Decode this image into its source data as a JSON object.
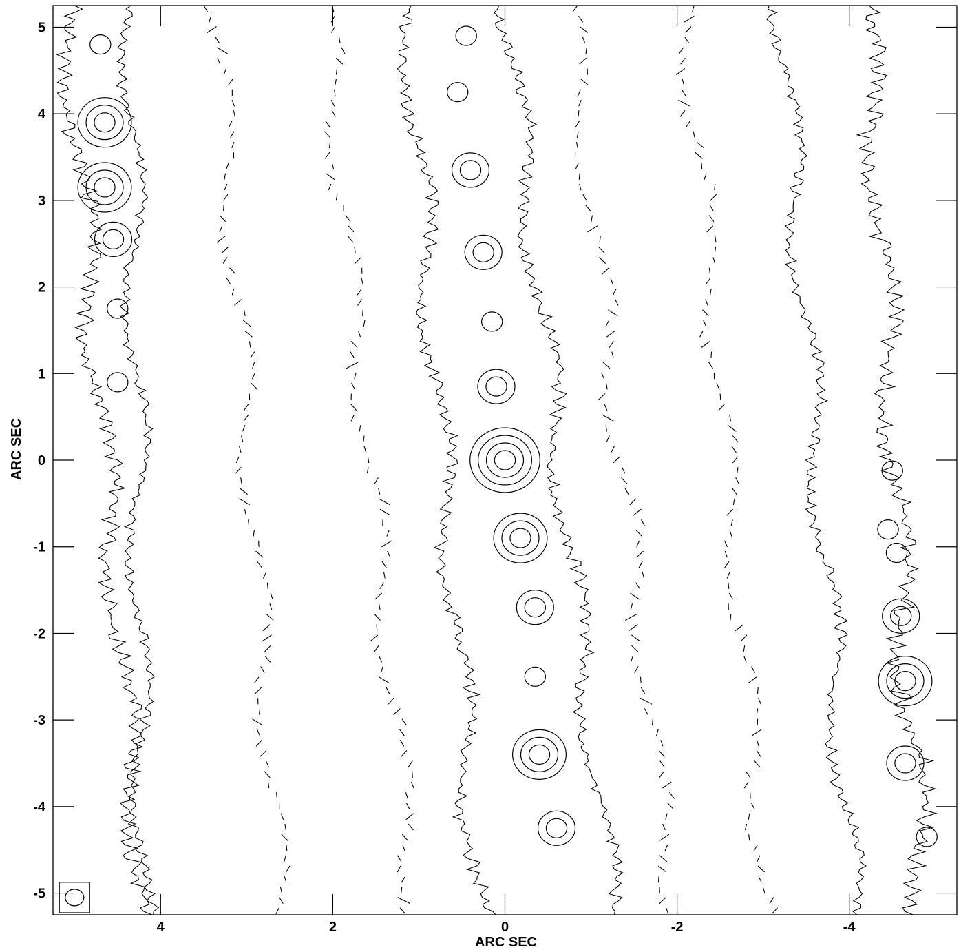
{
  "chart_data": {
    "type": "contour",
    "xlabel": "ARC SEC",
    "ylabel": "ARC SEC",
    "xlim": [
      5.25,
      -5.25
    ],
    "ylim": [
      -5.25,
      5.25
    ],
    "x_ticks": [
      4,
      2,
      0,
      -2,
      -4
    ],
    "x_tick_labels": [
      "4",
      "2",
      "0",
      "-2",
      "-4"
    ],
    "y_ticks": [
      5,
      4,
      3,
      2,
      1,
      0,
      -1,
      -2,
      -3,
      -4,
      -5
    ],
    "y_tick_labels": [
      "5",
      "4",
      "3",
      "2",
      "1",
      "0",
      "-1",
      "-2",
      "-3",
      "-4",
      "-5"
    ],
    "beam": {
      "x": 5.0,
      "y": -5.05,
      "major": 0.18,
      "minor": 0.16
    },
    "components": [
      {
        "x": 4.7,
        "y": 4.8,
        "levels": 1
      },
      {
        "x": 4.65,
        "y": 3.9,
        "levels": 3
      },
      {
        "x": 4.65,
        "y": 3.15,
        "levels": 3
      },
      {
        "x": 4.55,
        "y": 2.55,
        "levels": 2
      },
      {
        "x": 4.5,
        "y": 1.75,
        "levels": 1
      },
      {
        "x": 4.5,
        "y": 0.9,
        "levels": 1
      },
      {
        "x": 0.45,
        "y": 4.9,
        "levels": 1
      },
      {
        "x": 0.55,
        "y": 4.25,
        "levels": 1
      },
      {
        "x": 0.4,
        "y": 3.35,
        "levels": 2
      },
      {
        "x": 0.25,
        "y": 2.4,
        "levels": 2
      },
      {
        "x": 0.15,
        "y": 1.6,
        "levels": 1
      },
      {
        "x": 0.1,
        "y": 0.85,
        "levels": 2
      },
      {
        "x": 0.0,
        "y": 0.0,
        "levels": 4
      },
      {
        "x": -0.18,
        "y": -0.9,
        "levels": 3
      },
      {
        "x": -0.35,
        "y": -1.7,
        "levels": 2
      },
      {
        "x": -0.35,
        "y": -2.5,
        "levels": 1
      },
      {
        "x": -0.4,
        "y": -3.4,
        "levels": 3
      },
      {
        "x": -0.6,
        "y": -4.25,
        "levels": 2
      },
      {
        "x": -4.5,
        "y": -0.12,
        "levels": 1
      },
      {
        "x": -4.45,
        "y": -0.8,
        "levels": 1
      },
      {
        "x": -4.55,
        "y": -1.07,
        "levels": 1
      },
      {
        "x": -4.6,
        "y": -1.8,
        "levels": 2
      },
      {
        "x": -4.65,
        "y": -2.55,
        "levels": 3
      },
      {
        "x": -4.65,
        "y": -3.5,
        "levels": 2
      },
      {
        "x": -4.9,
        "y": -4.35,
        "levels": 1
      }
    ],
    "traces": [
      {
        "style": "solid",
        "top": 4.35,
        "bottom": 4.2,
        "amp": 0.06
      },
      {
        "style": "dashed",
        "top": 3.35,
        "bottom": 2.6,
        "amp": 0.05
      },
      {
        "style": "dashed",
        "top": 2.1,
        "bottom": 1.05,
        "amp": 0.06
      },
      {
        "style": "solid",
        "top": 1.15,
        "bottom": 0.3,
        "amp": 0.08
      },
      {
        "style": "solid",
        "top": 0.0,
        "bottom": -1.25,
        "amp": 0.08
      },
      {
        "style": "dashed",
        "top": -0.75,
        "bottom": -1.95,
        "amp": 0.06
      },
      {
        "style": "dashed",
        "top": -2.1,
        "bottom": -3.05,
        "amp": 0.06
      },
      {
        "style": "solid",
        "top": -3.2,
        "bottom": -4.05,
        "amp": 0.07
      },
      {
        "style": "solid",
        "top": -4.2,
        "bottom": -4.85,
        "amp": 0.12
      },
      {
        "style": "solid",
        "top": 5.1,
        "bottom": 4.2,
        "amp": 0.1
      }
    ]
  }
}
